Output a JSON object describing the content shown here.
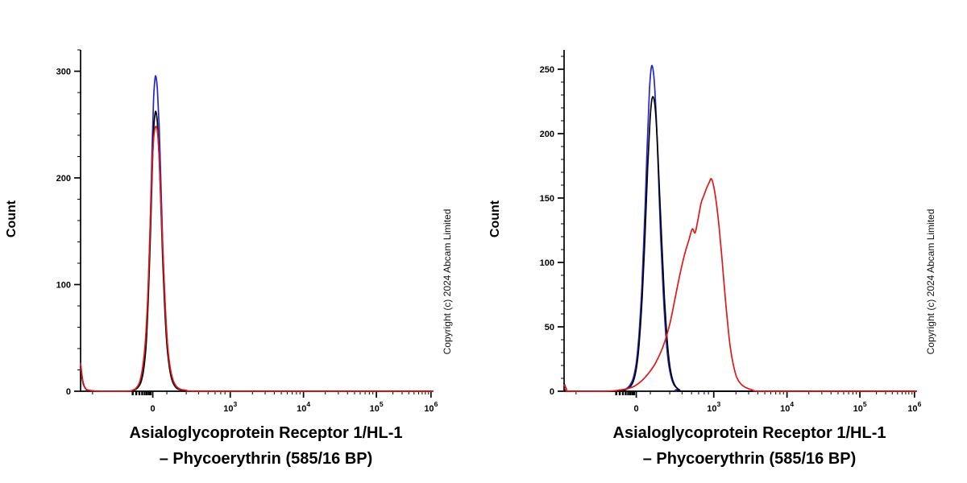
{
  "figure": {
    "background": "#ffffff",
    "axis_color": "#000000"
  },
  "panels": [
    {
      "ylabel": "Count",
      "xlabel_line1": "Asialoglycoprotein Receptor 1/HL-1",
      "xlabel_line2": "– Phycoerythrin (585/16 BP)",
      "copyright": "Copyright (c) 2024 Abcam Limited"
    },
    {
      "ylabel": "Count",
      "xlabel_line1": "Asialoglycoprotein Receptor 1/HL-1",
      "xlabel_line2": "– Phycoerythrin (585/16 BP)",
      "copyright": "Copyright (c) 2024 Abcam Limited"
    }
  ],
  "chart_data": [
    {
      "type": "line",
      "subtype": "flow-cytometry-histogram",
      "title": "",
      "xlabel": "Asialoglycoprotein Receptor 1/HL-1 – Phycoerythrin (585/16 BP)",
      "ylabel": "Count",
      "x_scale": "biexponential",
      "x_units": "axis_fraction",
      "legend": "none",
      "grid": false,
      "ylim": [
        0,
        320
      ],
      "yticks": [
        0,
        100,
        200,
        300
      ],
      "y_minor_step": 20,
      "x_ticks": [
        {
          "label": "0",
          "pos": 0.205
        },
        {
          "label": "10",
          "exp": "3",
          "pos": 0.425
        },
        {
          "label": "10",
          "exp": "4",
          "pos": 0.633
        },
        {
          "label": "10",
          "exp": "5",
          "pos": 0.84
        },
        {
          "label": "10",
          "exp": "6",
          "pos": 0.995
        }
      ],
      "x_minor_ticks": [
        0.034,
        0.245,
        0.3,
        0.335,
        0.362,
        0.382,
        0.398,
        0.41,
        0.488,
        0.524,
        0.55,
        0.57,
        0.587,
        0.601,
        0.613,
        0.623,
        0.695,
        0.732,
        0.758,
        0.778,
        0.794,
        0.808,
        0.82,
        0.83,
        0.887,
        0.913,
        0.932,
        0.947,
        0.96,
        0.97,
        0.979,
        0.988
      ],
      "x_bold_minor_ticks": [
        0.148,
        0.158,
        0.167,
        0.175,
        0.182,
        0.188,
        0.194,
        0.199
      ],
      "series": [
        {
          "name": "blue",
          "color": "#2525cf",
          "peak_count": 295,
          "points": [
            [
              0.0,
              26
            ],
            [
              0.006,
              10
            ],
            [
              0.013,
              3
            ],
            [
              0.022,
              1
            ],
            [
              0.05,
              0
            ],
            [
              0.1,
              0
            ],
            [
              0.135,
              0
            ],
            [
              0.15,
              1
            ],
            [
              0.161,
              3
            ],
            [
              0.171,
              9
            ],
            [
              0.179,
              22
            ],
            [
              0.186,
              48
            ],
            [
              0.192,
              95
            ],
            [
              0.198,
              160
            ],
            [
              0.203,
              226
            ],
            [
              0.207,
              272
            ],
            [
              0.211,
              292
            ],
            [
              0.214,
              295
            ],
            [
              0.218,
              283
            ],
            [
              0.223,
              249
            ],
            [
              0.228,
              197
            ],
            [
              0.233,
              141
            ],
            [
              0.239,
              89
            ],
            [
              0.245,
              50
            ],
            [
              0.252,
              26
            ],
            [
              0.259,
              13
            ],
            [
              0.267,
              6
            ],
            [
              0.277,
              3
            ],
            [
              0.29,
              1
            ],
            [
              0.31,
              0
            ],
            [
              0.42,
              0
            ],
            [
              0.6,
              0
            ],
            [
              0.8,
              0
            ],
            [
              1.0,
              0
            ]
          ]
        },
        {
          "name": "black",
          "color": "#000000",
          "peak_count": 262,
          "points": [
            [
              0.0,
              23
            ],
            [
              0.006,
              9
            ],
            [
              0.013,
              3
            ],
            [
              0.022,
              1
            ],
            [
              0.05,
              0
            ],
            [
              0.135,
              0
            ],
            [
              0.15,
              1
            ],
            [
              0.161,
              3
            ],
            [
              0.171,
              8
            ],
            [
              0.179,
              20
            ],
            [
              0.186,
              43
            ],
            [
              0.192,
              85
            ],
            [
              0.198,
              143
            ],
            [
              0.203,
              201
            ],
            [
              0.207,
              242
            ],
            [
              0.211,
              259
            ],
            [
              0.214,
              262
            ],
            [
              0.218,
              252
            ],
            [
              0.223,
              221
            ],
            [
              0.228,
              176
            ],
            [
              0.233,
              126
            ],
            [
              0.239,
              79
            ],
            [
              0.245,
              44
            ],
            [
              0.252,
              23
            ],
            [
              0.259,
              11
            ],
            [
              0.267,
              5
            ],
            [
              0.277,
              2
            ],
            [
              0.29,
              1
            ],
            [
              0.31,
              0
            ],
            [
              0.5,
              0
            ],
            [
              0.75,
              0
            ],
            [
              1.0,
              0
            ]
          ]
        },
        {
          "name": "red",
          "color": "#e01818",
          "peak_count": 248,
          "points": [
            [
              0.0,
              26
            ],
            [
              0.006,
              10
            ],
            [
              0.013,
              3
            ],
            [
              0.022,
              1
            ],
            [
              0.05,
              0
            ],
            [
              0.132,
              0
            ],
            [
              0.148,
              1
            ],
            [
              0.158,
              3
            ],
            [
              0.168,
              9
            ],
            [
              0.176,
              22
            ],
            [
              0.184,
              47
            ],
            [
              0.191,
              91
            ],
            [
              0.197,
              148
            ],
            [
              0.202,
              200
            ],
            [
              0.207,
              235
            ],
            [
              0.211,
              246
            ],
            [
              0.215,
              248
            ],
            [
              0.219,
              241
            ],
            [
              0.224,
              213
            ],
            [
              0.229,
              169
            ],
            [
              0.235,
              120
            ],
            [
              0.241,
              77
            ],
            [
              0.247,
              44
            ],
            [
              0.254,
              23
            ],
            [
              0.262,
              11
            ],
            [
              0.271,
              5
            ],
            [
              0.282,
              2
            ],
            [
              0.3,
              1
            ],
            [
              0.33,
              0
            ],
            [
              0.6,
              0
            ],
            [
              1.0,
              0
            ]
          ]
        }
      ]
    },
    {
      "type": "line",
      "subtype": "flow-cytometry-histogram",
      "title": "",
      "xlabel": "Asialoglycoprotein Receptor 1/HL-1 – Phycoerythrin (585/16 BP)",
      "ylabel": "Count",
      "x_scale": "biexponential",
      "x_units": "axis_fraction",
      "legend": "none",
      "grid": false,
      "ylim": [
        0,
        265
      ],
      "yticks": [
        0,
        50,
        100,
        150,
        200,
        250
      ],
      "y_minor_step": 10,
      "x_ticks": [
        {
          "label": "0",
          "pos": 0.205
        },
        {
          "label": "10",
          "exp": "3",
          "pos": 0.425
        },
        {
          "label": "10",
          "exp": "4",
          "pos": 0.633
        },
        {
          "label": "10",
          "exp": "5",
          "pos": 0.84
        },
        {
          "label": "10",
          "exp": "6",
          "pos": 0.995
        }
      ],
      "x_minor_ticks": [
        0.034,
        0.245,
        0.3,
        0.335,
        0.362,
        0.382,
        0.398,
        0.41,
        0.488,
        0.524,
        0.55,
        0.57,
        0.587,
        0.601,
        0.613,
        0.623,
        0.695,
        0.732,
        0.758,
        0.778,
        0.794,
        0.808,
        0.82,
        0.83,
        0.887,
        0.913,
        0.932,
        0.947,
        0.96,
        0.97,
        0.979,
        0.988
      ],
      "x_bold_minor_ticks": [
        0.148,
        0.158,
        0.167,
        0.175,
        0.182,
        0.188,
        0.194,
        0.199
      ],
      "series": [
        {
          "name": "blue",
          "color": "#2525cf",
          "peak_count": 252,
          "points": [
            [
              0.0,
              6
            ],
            [
              0.006,
              2
            ],
            [
              0.016,
              0
            ],
            [
              0.1,
              0
            ],
            [
              0.15,
              0
            ],
            [
              0.17,
              1
            ],
            [
              0.185,
              4
            ],
            [
              0.196,
              10
            ],
            [
              0.205,
              22
            ],
            [
              0.213,
              45
            ],
            [
              0.221,
              82
            ],
            [
              0.229,
              136
            ],
            [
              0.236,
              190
            ],
            [
              0.242,
              232
            ],
            [
              0.247,
              250
            ],
            [
              0.251,
              252
            ],
            [
              0.256,
              241
            ],
            [
              0.262,
              211
            ],
            [
              0.268,
              168
            ],
            [
              0.274,
              122
            ],
            [
              0.281,
              80
            ],
            [
              0.288,
              47
            ],
            [
              0.295,
              25
            ],
            [
              0.303,
              12
            ],
            [
              0.312,
              5
            ],
            [
              0.323,
              2
            ],
            [
              0.34,
              0
            ],
            [
              0.6,
              0
            ],
            [
              1.0,
              0
            ]
          ]
        },
        {
          "name": "black",
          "color": "#000000",
          "peak_count": 228,
          "points": [
            [
              0.0,
              6
            ],
            [
              0.006,
              2
            ],
            [
              0.016,
              0
            ],
            [
              0.15,
              0
            ],
            [
              0.172,
              1
            ],
            [
              0.186,
              3
            ],
            [
              0.197,
              8
            ],
            [
              0.206,
              19
            ],
            [
              0.214,
              40
            ],
            [
              0.222,
              74
            ],
            [
              0.23,
              122
            ],
            [
              0.237,
              172
            ],
            [
              0.244,
              210
            ],
            [
              0.249,
              226
            ],
            [
              0.254,
              228
            ],
            [
              0.259,
              219
            ],
            [
              0.265,
              193
            ],
            [
              0.271,
              155
            ],
            [
              0.278,
              112
            ],
            [
              0.285,
              72
            ],
            [
              0.292,
              42
            ],
            [
              0.299,
              22
            ],
            [
              0.307,
              10
            ],
            [
              0.316,
              4
            ],
            [
              0.328,
              1
            ],
            [
              0.345,
              0
            ],
            [
              0.6,
              0
            ],
            [
              1.0,
              0
            ]
          ]
        },
        {
          "name": "red",
          "color": "#e01818",
          "peak_count": 165,
          "points": [
            [
              0.0,
              5
            ],
            [
              0.006,
              2
            ],
            [
              0.016,
              0
            ],
            [
              0.12,
              0
            ],
            [
              0.16,
              1
            ],
            [
              0.18,
              2
            ],
            [
              0.2,
              4
            ],
            [
              0.22,
              8
            ],
            [
              0.24,
              14
            ],
            [
              0.26,
              22
            ],
            [
              0.28,
              34
            ],
            [
              0.3,
              52
            ],
            [
              0.315,
              72
            ],
            [
              0.33,
              92
            ],
            [
              0.343,
              107
            ],
            [
              0.354,
              117
            ],
            [
              0.364,
              126
            ],
            [
              0.372,
              123
            ],
            [
              0.38,
              133
            ],
            [
              0.389,
              146
            ],
            [
              0.397,
              152
            ],
            [
              0.405,
              158
            ],
            [
              0.412,
              162
            ],
            [
              0.418,
              165
            ],
            [
              0.425,
              159
            ],
            [
              0.432,
              147
            ],
            [
              0.44,
              128
            ],
            [
              0.448,
              104
            ],
            [
              0.456,
              78
            ],
            [
              0.464,
              54
            ],
            [
              0.472,
              34
            ],
            [
              0.481,
              20
            ],
            [
              0.49,
              11
            ],
            [
              0.501,
              6
            ],
            [
              0.515,
              3
            ],
            [
              0.535,
              1
            ],
            [
              0.56,
              0
            ],
            [
              0.75,
              0
            ],
            [
              1.0,
              0
            ]
          ]
        }
      ]
    }
  ]
}
